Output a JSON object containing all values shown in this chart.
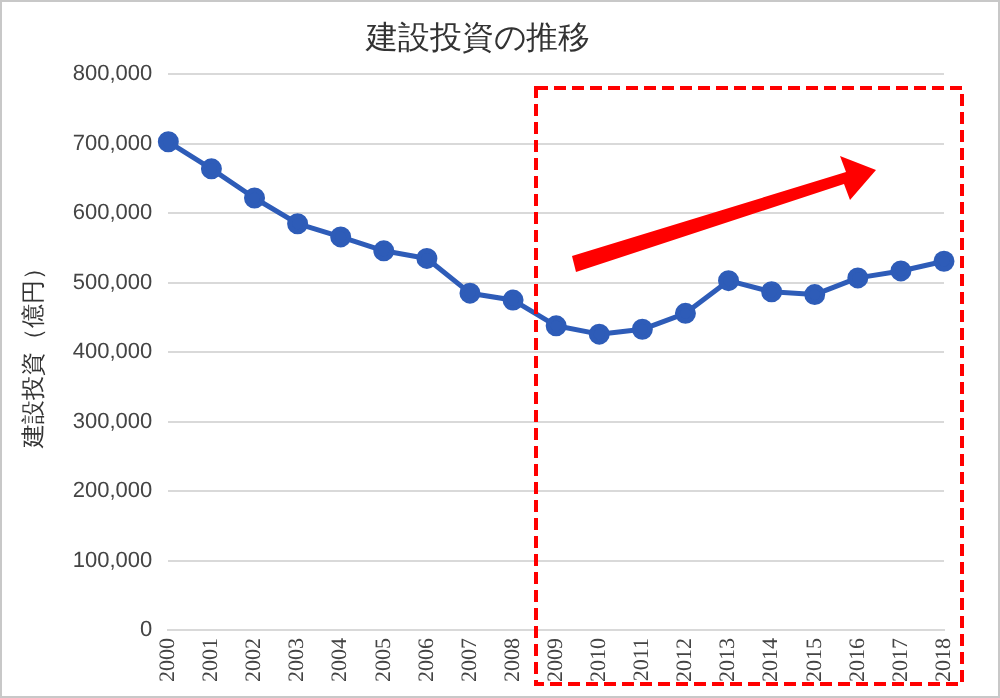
{
  "chart_data": {
    "type": "line",
    "title": "建設投資の推移",
    "ylabel": "建設投資（億円）",
    "categories": [
      "2000",
      "2001",
      "2002",
      "2003",
      "2004",
      "2005",
      "2006",
      "2007",
      "2008",
      "2009",
      "2010",
      "2011",
      "2012",
      "2013",
      "2014",
      "2015",
      "2016",
      "2017",
      "2018"
    ],
    "series": [
      {
        "color": "#2e5cb8",
        "values": [
          703000,
          664000,
          622000,
          585000,
          566000,
          546000,
          535000,
          485000,
          475000,
          438000,
          426000,
          433000,
          456000,
          503000,
          487000,
          483000,
          507000,
          517000,
          531000
        ]
      }
    ],
    "ylim": [
      0,
      800000
    ],
    "yticks": [
      0,
      {
        "value": 100000,
        "label": "100,000"
      },
      {
        "value": 200000,
        "label": "200,000"
      },
      {
        "value": 300000,
        "label": "300,000"
      },
      {
        "value": 400000,
        "label": "400,000"
      },
      {
        "value": 500000,
        "label": "500,000"
      },
      {
        "value": 600000,
        "label": "600,000"
      },
      {
        "value": 700000,
        "label": "700,000"
      },
      {
        "value": 800000,
        "label": "800,000"
      }
    ],
    "grid": "y",
    "legend": false,
    "marker": "circle",
    "line_style": "solid"
  }
}
